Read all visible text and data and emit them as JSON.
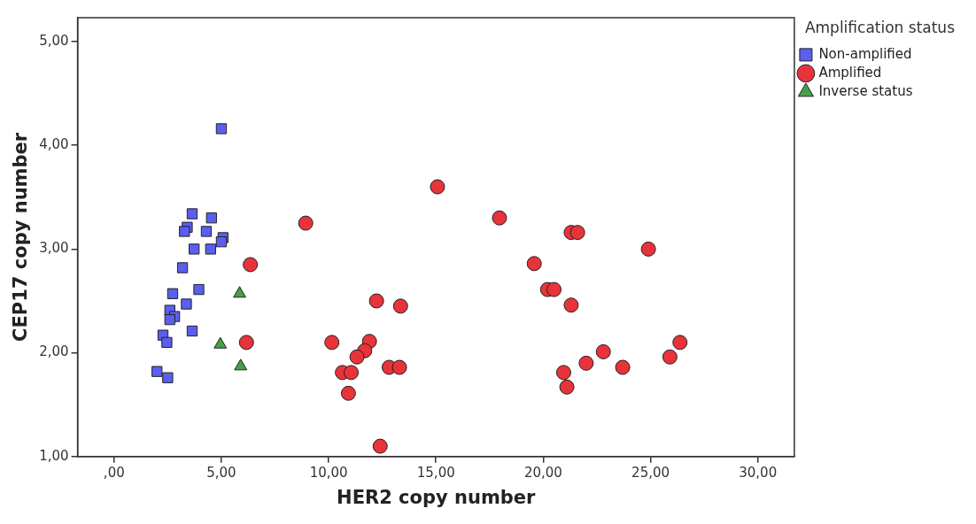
{
  "chart_data": {
    "type": "scatter",
    "xlabel": "HER2 copy number",
    "ylabel": "CEP17 copy number",
    "legend_title": "Amplification status",
    "legend": "top right",
    "grid": false,
    "xlim": [
      -1.7,
      31.7
    ],
    "xticks": [
      {
        "value": 0,
        "label": ",00"
      },
      {
        "value": 5,
        "label": "5,00"
      },
      {
        "value": 10,
        "label": "10,00"
      },
      {
        "value": 15,
        "label": "15,00"
      },
      {
        "value": 20,
        "label": "20,00"
      },
      {
        "value": 25,
        "label": "25,00"
      },
      {
        "value": 30,
        "label": "30,00"
      }
    ],
    "ylim": [
      1,
      5.23
    ],
    "yticks": [
      {
        "value": 1,
        "label": "1,00"
      },
      {
        "value": 2,
        "label": "2,00"
      },
      {
        "value": 3,
        "label": "3,00"
      },
      {
        "value": 4,
        "label": "4,00"
      },
      {
        "value": 5,
        "label": "5,00"
      }
    ],
    "series": [
      {
        "name": "Non-amplified",
        "color": "#5b5ef0",
        "marker": "square",
        "x": [
          5.0,
          3.64,
          4.54,
          3.41,
          3.28,
          4.3,
          5.08,
          5.0,
          3.73,
          4.5,
          3.19,
          3.95,
          2.73,
          3.37,
          2.6,
          2.82,
          2.6,
          3.64,
          2.28,
          2.46,
          2.0,
          2.5
        ],
        "values": [
          4.16,
          3.34,
          3.3,
          3.21,
          3.17,
          3.17,
          3.11,
          3.07,
          3.0,
          3.0,
          2.82,
          2.61,
          2.57,
          2.47,
          2.41,
          2.35,
          2.32,
          2.21,
          2.17,
          2.1,
          1.82,
          1.76
        ]
      },
      {
        "name": "Amplified",
        "color": "#e8333a",
        "marker": "circle",
        "x": [
          6.35,
          6.17,
          8.93,
          15.07,
          12.23,
          13.35,
          10.15,
          11.9,
          11.68,
          11.32,
          10.64,
          11.05,
          12.82,
          13.3,
          10.92,
          12.4,
          17.96,
          21.3,
          21.6,
          24.9,
          19.58,
          20.2,
          20.5,
          21.3,
          26.37,
          25.9,
          22.8,
          22.0,
          23.7,
          20.95,
          21.1
        ],
        "values": [
          2.85,
          2.1,
          3.25,
          3.6,
          2.5,
          2.45,
          2.1,
          2.11,
          2.02,
          1.96,
          1.81,
          1.81,
          1.86,
          1.86,
          1.61,
          1.1,
          3.3,
          3.16,
          3.16,
          3.0,
          2.86,
          2.61,
          2.61,
          2.46,
          2.1,
          1.96,
          2.01,
          1.9,
          1.86,
          1.81,
          1.67
        ]
      },
      {
        "name": "Inverse status",
        "color": "#44a04a",
        "marker": "triangle",
        "x": [
          5.85,
          4.95,
          5.9
        ],
        "values": [
          2.57,
          2.08,
          1.87
        ]
      }
    ]
  }
}
